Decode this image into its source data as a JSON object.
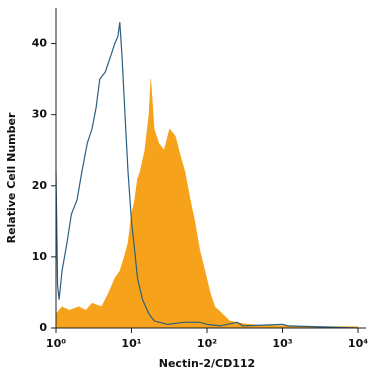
{
  "chart_data": {
    "type": "histogram-overlay",
    "xlabel": "Nectin-2/CD112",
    "ylabel": "Relative Cell Number",
    "xscale": "log",
    "xlim": [
      1,
      10000
    ],
    "ylim": [
      0,
      45
    ],
    "xticks": [
      {
        "value": 1,
        "label": "10⁰"
      },
      {
        "value": 10,
        "label": "10¹"
      },
      {
        "value": 100,
        "label": "10²"
      },
      {
        "value": 1000,
        "label": "10³"
      },
      {
        "value": 10000,
        "label": "10⁴"
      }
    ],
    "yticks": [
      0,
      10,
      20,
      30,
      40
    ],
    "series": [
      {
        "color": "#f7a21b",
        "fill": true,
        "x": [
          1,
          1.2,
          1.5,
          2,
          2.5,
          3,
          4,
          5,
          6,
          7,
          8,
          9,
          10,
          11,
          12,
          13,
          15,
          17,
          18,
          20,
          23,
          27,
          32,
          38,
          45,
          51,
          60,
          69,
          80,
          94,
          110,
          127,
          160,
          200,
          300,
          500,
          1000,
          3000,
          10000
        ],
        "values": [
          2,
          3,
          2.5,
          3,
          2.5,
          3.5,
          3,
          5,
          7,
          8,
          10,
          12,
          16,
          18,
          21,
          22,
          25,
          30,
          35,
          28,
          26,
          25,
          28,
          27,
          24,
          22,
          18,
          15,
          11,
          8,
          5,
          3,
          2,
          1,
          0.6,
          0.4,
          0.3,
          0.2,
          0.2
        ]
      },
      {
        "color": "#2a5f80",
        "fill": false,
        "x": [
          1,
          1.05,
          1.1,
          1.2,
          1.4,
          1.6,
          1.9,
          2.2,
          2.6,
          3,
          3.4,
          3.8,
          4.5,
          5.2,
          6,
          6.6,
          7,
          7.5,
          8.2,
          9,
          10,
          11,
          12,
          14,
          17,
          20,
          30,
          50,
          80,
          100,
          150,
          250,
          300,
          1000,
          1200,
          10000
        ],
        "values": [
          22,
          6,
          4,
          8,
          12,
          16,
          18,
          22,
          26,
          28,
          31,
          35,
          36,
          38,
          40,
          41,
          43,
          38,
          30,
          22,
          15,
          11,
          7,
          4,
          2,
          1,
          0.5,
          0.8,
          0.8,
          0.5,
          0.3,
          0.8,
          0.3,
          0.5,
          0.3,
          0
        ]
      }
    ]
  }
}
